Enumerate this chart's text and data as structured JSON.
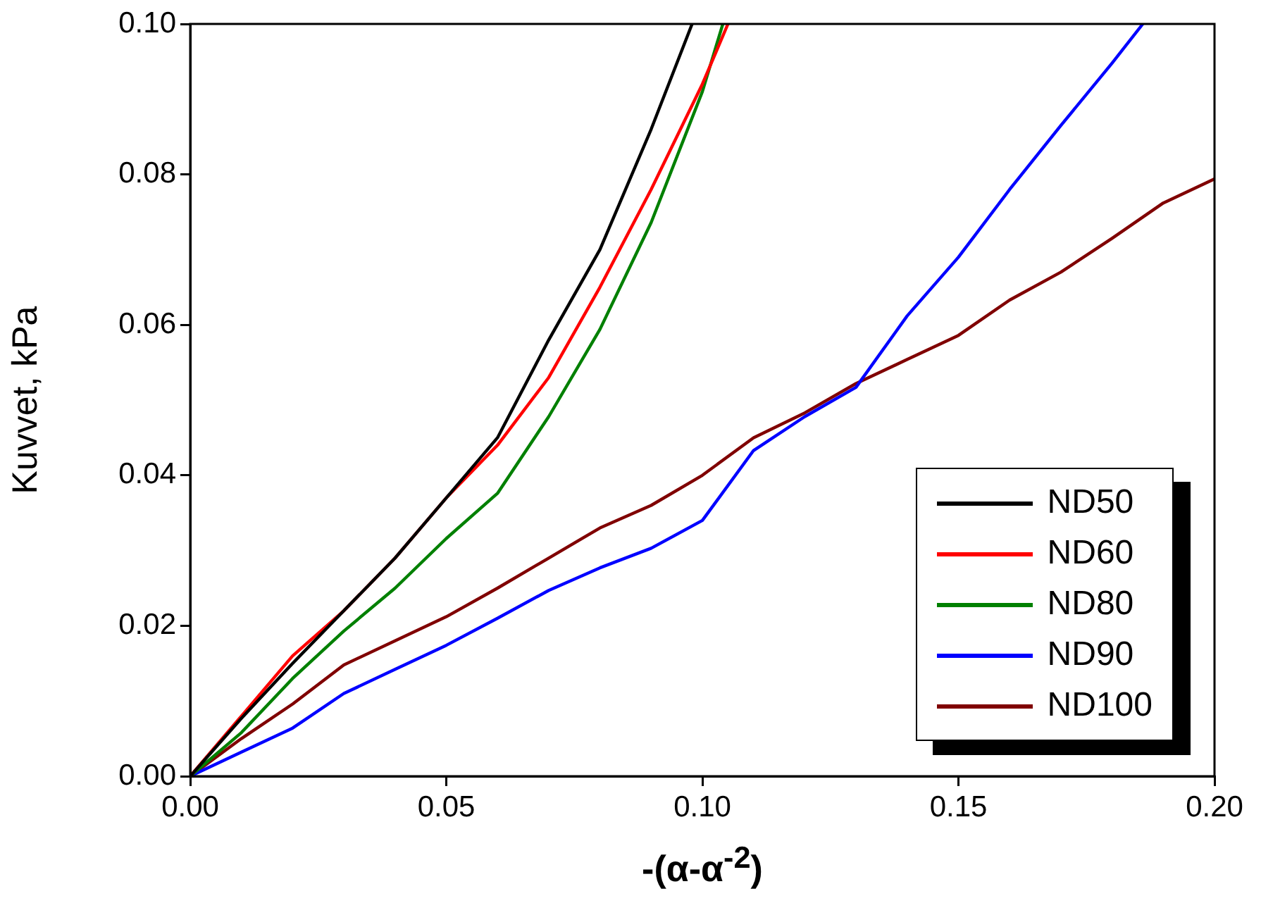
{
  "chart_data": {
    "type": "line",
    "xlabel": "-(α-α$^{-2}$)",
    "ylabel": "Kuvvet, kPa",
    "xlim": [
      0,
      0.2
    ],
    "ylim": [
      0,
      0.1
    ],
    "xticks": [
      {
        "value": 0,
        "label": "0.00"
      },
      0.05,
      {
        "value": 0.1,
        "label": "0.10"
      },
      0.15,
      {
        "value": 0.2,
        "label": "0.20"
      }
    ],
    "yticks": [
      {
        "value": 0,
        "label": "0.00"
      },
      0.02,
      0.04,
      0.06,
      0.08,
      {
        "value": 0.1,
        "label": "0.10"
      }
    ],
    "legend": "bottom right",
    "marker": "none",
    "line_style": "solid",
    "series": [
      {
        "name": "ND50",
        "color": "#000000",
        "x": [
          0,
          0.01,
          0.02,
          0.03,
          0.04,
          0.05,
          0.06,
          0.07,
          0.08,
          0.09,
          0.098
        ],
        "values": [
          0,
          0.0077,
          0.015,
          0.022,
          0.029,
          0.037,
          0.045,
          0.058,
          0.07,
          0.086,
          0.1
        ]
      },
      {
        "name": "ND60",
        "color": "#ff0000",
        "x": [
          0,
          0.01,
          0.02,
          0.03,
          0.04,
          0.05,
          0.06,
          0.07,
          0.08,
          0.09,
          0.1,
          0.105
        ],
        "values": [
          0,
          0.008,
          0.016,
          0.022,
          0.029,
          0.037,
          0.044,
          0.053,
          0.065,
          0.078,
          0.092,
          0.1
        ]
      },
      {
        "name": "ND80",
        "color": "#008000",
        "x": [
          0,
          0.01,
          0.02,
          0.03,
          0.04,
          0.05,
          0.06,
          0.07,
          0.08,
          0.09,
          0.1,
          0.104
        ],
        "values": [
          0,
          0.0058,
          0.013,
          0.0193,
          0.025,
          0.0316,
          0.0376,
          0.0478,
          0.0594,
          0.0736,
          0.091,
          0.1
        ]
      },
      {
        "name": "ND90",
        "color": "#0000ff",
        "x": [
          0,
          0.01,
          0.02,
          0.03,
          0.04,
          0.05,
          0.06,
          0.07,
          0.08,
          0.09,
          0.1,
          0.11,
          0.12,
          0.13,
          0.14,
          0.15,
          0.16,
          0.17,
          0.18,
          0.186
        ],
        "values": [
          0,
          0.0032,
          0.0064,
          0.011,
          0.0142,
          0.0174,
          0.021,
          0.0247,
          0.0277,
          0.0303,
          0.034,
          0.0433,
          0.0478,
          0.0517,
          0.0612,
          0.069,
          0.078,
          0.0865,
          0.0948,
          0.1
        ]
      },
      {
        "name": "ND100",
        "color": "#800000",
        "x": [
          0,
          0.01,
          0.02,
          0.03,
          0.04,
          0.05,
          0.06,
          0.07,
          0.08,
          0.09,
          0.1,
          0.11,
          0.12,
          0.13,
          0.14,
          0.15,
          0.16,
          0.17,
          0.18,
          0.19,
          0.2
        ],
        "values": [
          0,
          0.005,
          0.0096,
          0.0148,
          0.018,
          0.0212,
          0.025,
          0.029,
          0.033,
          0.036,
          0.04,
          0.045,
          0.0483,
          0.0522,
          0.0554,
          0.0586,
          0.0633,
          0.067,
          0.0715,
          0.0762,
          0.0794
        ]
      }
    ]
  }
}
